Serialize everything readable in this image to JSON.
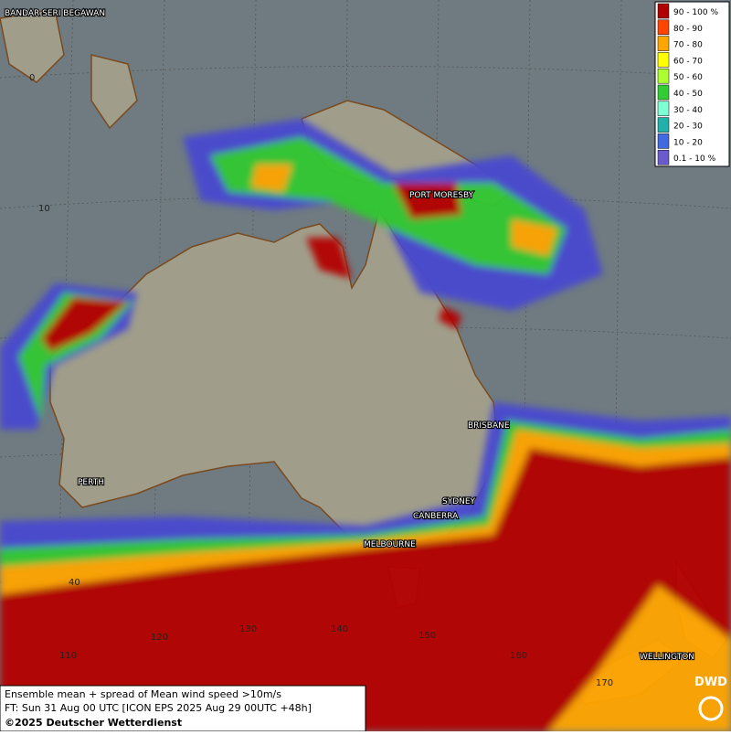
{
  "legend": [
    {
      "label": "90 - 100 %",
      "color": "#b00000"
    },
    {
      "label": "80 - 90",
      "color": "#ff4500"
    },
    {
      "label": "70 - 80",
      "color": "#ffa500"
    },
    {
      "label": "60 - 70",
      "color": "#ffff00"
    },
    {
      "label": "50 - 60",
      "color": "#adff2f"
    },
    {
      "label": "40 - 50",
      "color": "#32cd32"
    },
    {
      "label": "30 - 40",
      "color": "#7fffd4"
    },
    {
      "label": "20 - 30",
      "color": "#20b2aa"
    },
    {
      "label": "10 - 20",
      "color": "#4169e1"
    },
    {
      "label": "0.1 - 10 %",
      "color": "#6a5acd"
    }
  ],
  "cities": [
    "BANDAR SERI BEGAWAN",
    "PORT MORESBY",
    "BRISBANE",
    "SYDNEY",
    "CANBERRA",
    "MELBOURNE",
    "PERTH",
    "WELLINGTON"
  ],
  "graticule_labels": [
    "0",
    "10",
    "40",
    "110",
    "120",
    "130",
    "140",
    "150",
    "160",
    "170"
  ],
  "footer": {
    "line1": "Ensemble mean + spread of Mean wind speed >10m/s",
    "line2": "FT: Sun 31 Aug 00 UTC [ICON EPS 2025 Aug 29 00UTC +48h]",
    "line3": "©2025 Deutscher Wetterdienst"
  },
  "logo": "DWD"
}
